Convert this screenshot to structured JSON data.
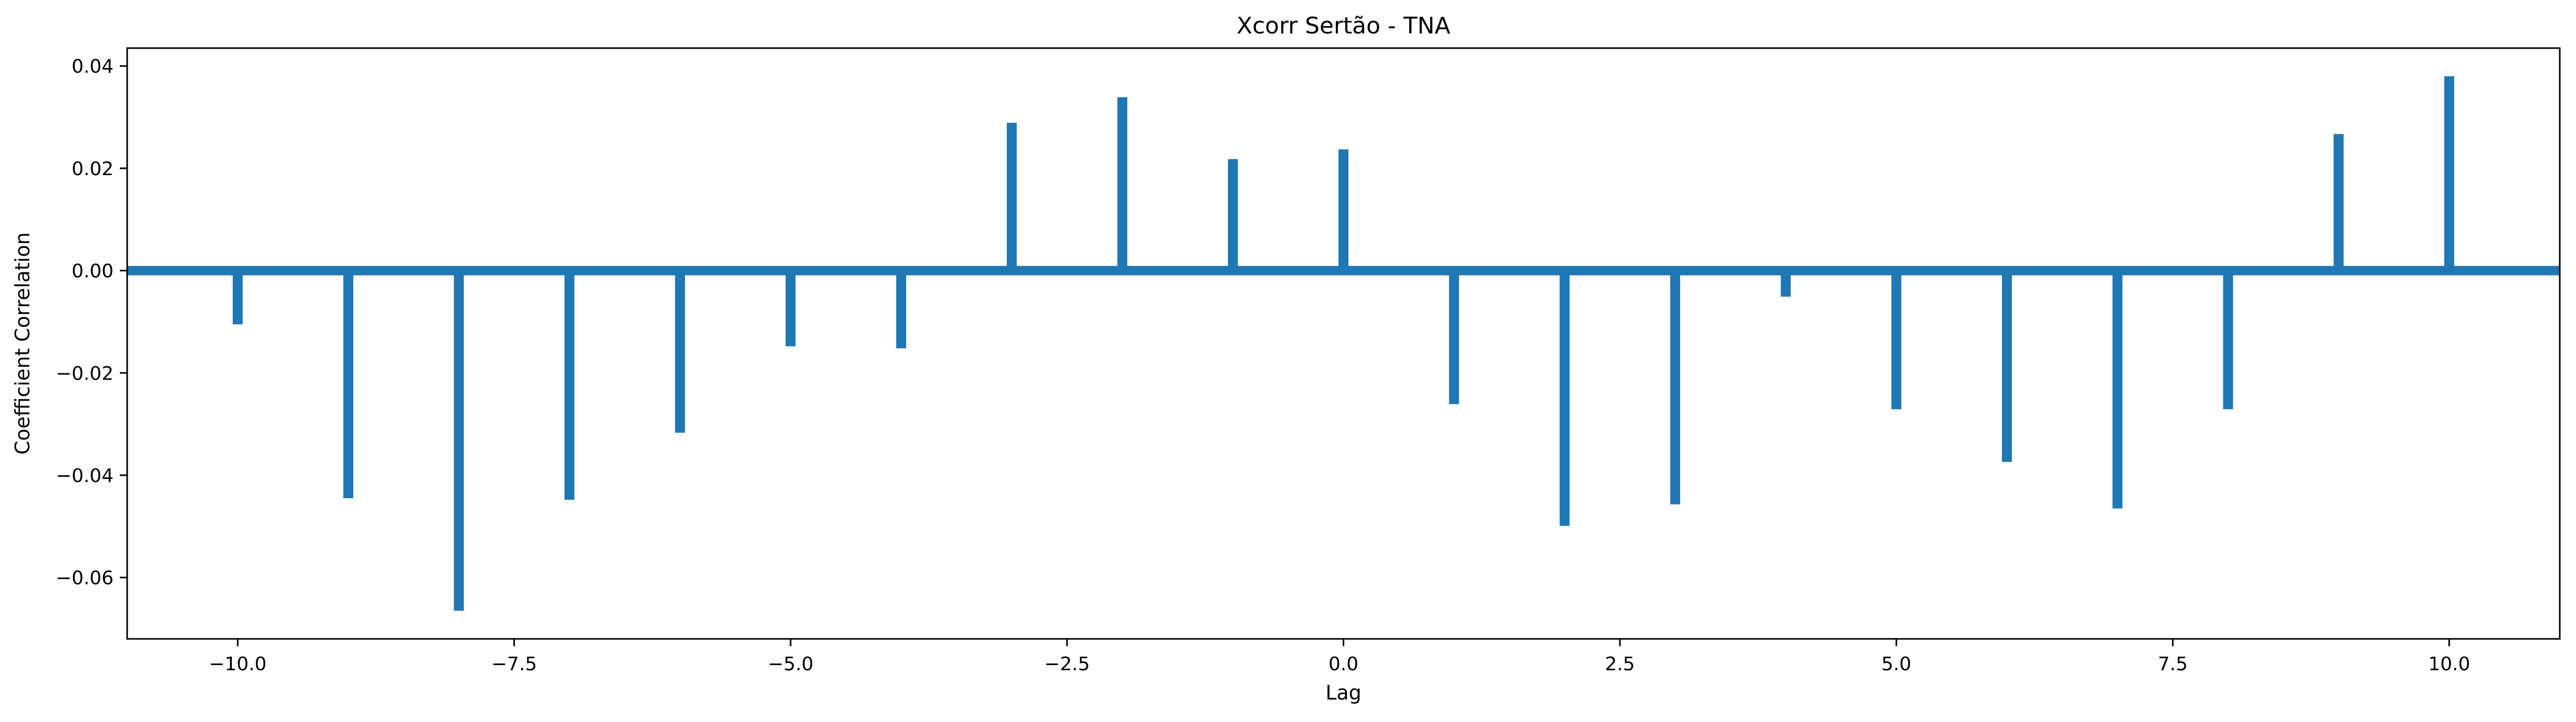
{
  "chart_data": {
    "type": "bar",
    "title": "Xcorr Sertão - TNA",
    "xlabel": "Lag",
    "ylabel": "Coefficient Correlation",
    "xlim": [
      -11.0,
      11.0
    ],
    "ylim": [
      -0.072,
      0.0435
    ],
    "grid": false,
    "legend": "none",
    "color": "#1f77b4",
    "x": [
      -10,
      -9,
      -8,
      -7,
      -6,
      -5,
      -4,
      -3,
      -2,
      -1,
      0,
      1,
      2,
      3,
      4,
      5,
      6,
      7,
      8,
      9,
      10
    ],
    "values": [
      -0.0105,
      -0.0445,
      -0.0665,
      -0.0448,
      -0.0317,
      -0.0148,
      -0.0152,
      0.0289,
      0.0339,
      0.0218,
      0.0237,
      -0.0261,
      -0.0499,
      -0.0457,
      -0.0051,
      -0.0271,
      -0.0374,
      -0.0465,
      -0.0271,
      0.0267,
      0.038
    ],
    "zero_line": 0,
    "xticks": [
      -10.0,
      -7.5,
      -5.0,
      -2.5,
      0.0,
      2.5,
      5.0,
      7.5,
      10.0
    ],
    "xtick_labels": [
      "−10.0",
      "−7.5",
      "−5.0",
      "−2.5",
      "0.0",
      "2.5",
      "5.0",
      "7.5",
      "10.0"
    ],
    "yticks": [
      -0.06,
      -0.04,
      -0.02,
      0.0,
      0.02,
      0.04
    ],
    "ytick_labels": [
      "−0.06",
      "−0.04",
      "−0.02",
      "0.00",
      "0.02",
      "0.04"
    ]
  }
}
